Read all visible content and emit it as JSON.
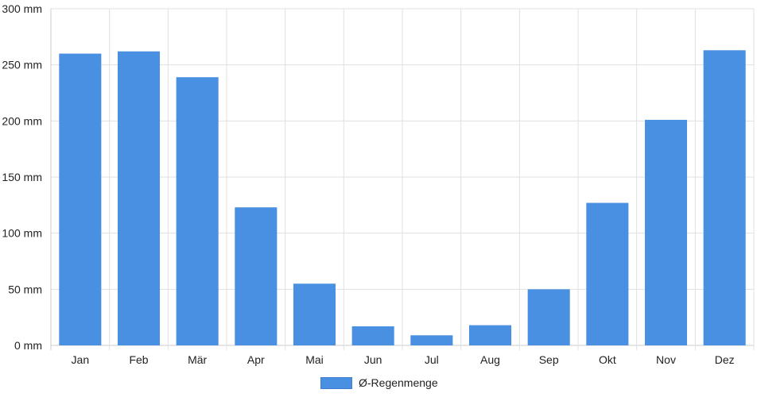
{
  "chart_data": {
    "type": "bar",
    "categories": [
      "Jan",
      "Feb",
      "Mär",
      "Apr",
      "Mai",
      "Jun",
      "Jul",
      "Aug",
      "Sep",
      "Okt",
      "Nov",
      "Dez"
    ],
    "series": [
      {
        "name": "Ø-Regenmenge",
        "values": [
          260,
          262,
          239,
          123,
          55,
          17,
          9,
          18,
          50,
          127,
          201,
          263
        ]
      }
    ],
    "ylim": [
      0,
      300
    ],
    "y_ticks": [
      0,
      50,
      100,
      150,
      200,
      250,
      300
    ],
    "y_unit": "mm",
    "grid": true,
    "legend_position": "bottom",
    "colors": {
      "bar": "#4a90e2",
      "grid": "#e0e0e0",
      "axis": "#cccccc"
    }
  }
}
